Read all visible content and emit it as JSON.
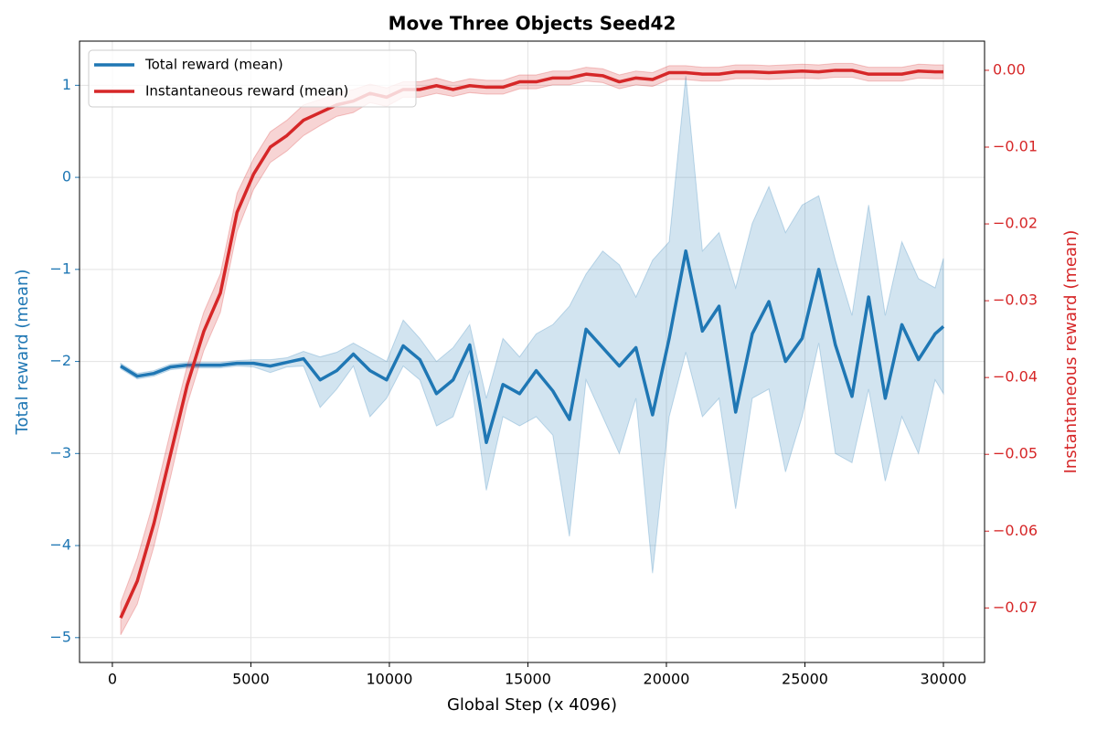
{
  "chart_data": {
    "type": "line",
    "title": "Move Three Objects Seed42",
    "xlabel": "Global Step (x 4096)",
    "ylabel": "Total reward (mean)",
    "y2label": "Instantaneous reward (mean)",
    "grid": true,
    "legend": "upper left",
    "xlim": [
      -1185,
      31485
    ],
    "xticks": [
      0,
      5000,
      10000,
      15000,
      20000,
      25000,
      30000
    ],
    "ylim": [
      -5.27,
      1.48
    ],
    "yticks": [
      {
        "value": -5,
        "label": "−5"
      },
      {
        "value": -4,
        "label": "−4"
      },
      {
        "value": -3,
        "label": "−3"
      },
      {
        "value": -2,
        "label": "−2"
      },
      {
        "value": -1,
        "label": "−1"
      },
      0,
      1
    ],
    "y2lim": [
      -0.0771,
      0.0038
    ],
    "y2ticks": [
      {
        "value": -0.07,
        "label": "−0.07"
      },
      {
        "value": -0.06,
        "label": "−0.06"
      },
      {
        "value": -0.05,
        "label": "−0.05"
      },
      {
        "value": -0.04,
        "label": "−0.04"
      },
      {
        "value": -0.03,
        "label": "−0.03"
      },
      {
        "value": -0.02,
        "label": "−0.02"
      },
      {
        "value": -0.01,
        "label": "−0.01"
      },
      {
        "value": 0,
        "label": "0.00"
      }
    ],
    "x": [
      300,
      900,
      1500,
      2100,
      2700,
      3300,
      3900,
      4500,
      5100,
      5700,
      6300,
      6900,
      7500,
      8100,
      8700,
      9300,
      9900,
      10500,
      11100,
      11700,
      12300,
      12900,
      13500,
      14100,
      14700,
      15300,
      15900,
      16500,
      17100,
      17700,
      18300,
      18900,
      19500,
      20100,
      20700,
      21300,
      21900,
      22500,
      23100,
      23700,
      24300,
      24900,
      25500,
      26100,
      26700,
      27300,
      27900,
      28500,
      29100,
      29700,
      30000
    ],
    "series": [
      {
        "name": "Total reward (mean)",
        "color": "#1f77b4",
        "values": [
          -2.05,
          -2.16,
          -2.13,
          -2.06,
          -2.04,
          -2.04,
          -2.04,
          -2.02,
          -2.02,
          -2.05,
          -2.01,
          -1.97,
          -2.2,
          -2.1,
          -1.92,
          -2.1,
          -2.2,
          -1.83,
          -1.98,
          -2.35,
          -2.2,
          -1.82,
          -2.88,
          -2.25,
          -2.35,
          -2.1,
          -2.32,
          -2.63,
          -1.65,
          -1.85,
          -2.05,
          -1.85,
          -2.58,
          -1.75,
          -0.8,
          -1.67,
          -1.4,
          -2.55,
          -1.7,
          -1.35,
          -2.0,
          -1.75,
          -1.0,
          -1.82,
          -2.38,
          -1.3,
          -2.4,
          -1.6,
          -1.98,
          -1.7,
          -1.62
        ],
        "lower": [
          -2.08,
          -2.19,
          -2.16,
          -2.09,
          -2.07,
          -2.07,
          -2.07,
          -2.05,
          -2.06,
          -2.12,
          -2.06,
          -2.05,
          -2.5,
          -2.3,
          -2.05,
          -2.6,
          -2.4,
          -2.05,
          -2.2,
          -2.7,
          -2.6,
          -2.1,
          -3.4,
          -2.6,
          -2.7,
          -2.6,
          -2.8,
          -3.9,
          -2.2,
          -2.6,
          -3.0,
          -2.4,
          -4.3,
          -2.6,
          -1.9,
          -2.6,
          -2.4,
          -3.6,
          -2.4,
          -2.3,
          -3.2,
          -2.6,
          -1.8,
          -3.0,
          -3.1,
          -2.3,
          -3.3,
          -2.6,
          -3.0,
          -2.2,
          -2.35
        ],
        "upper": [
          -2.02,
          -2.13,
          -2.1,
          -2.03,
          -2.01,
          -2.01,
          -2.01,
          -1.99,
          -1.98,
          -1.98,
          -1.96,
          -1.89,
          -1.95,
          -1.9,
          -1.8,
          -1.9,
          -2.0,
          -1.55,
          -1.75,
          -2.0,
          -1.85,
          -1.6,
          -2.4,
          -1.75,
          -1.95,
          -1.7,
          -1.6,
          -1.4,
          -1.05,
          -0.8,
          -0.95,
          -1.3,
          -0.9,
          -0.7,
          1.1,
          -0.8,
          -0.6,
          -1.2,
          -0.5,
          -0.1,
          -0.6,
          -0.3,
          -0.2,
          -0.9,
          -1.5,
          -0.3,
          -1.5,
          -0.7,
          -1.1,
          -1.2,
          -0.88
        ]
      },
      {
        "name": "Instantaneous reward (mean)",
        "color": "#d62728",
        "axis": "y2",
        "values": [
          -0.0713,
          -0.0665,
          -0.059,
          -0.05,
          -0.041,
          -0.034,
          -0.029,
          -0.0185,
          -0.0135,
          -0.01,
          -0.0085,
          -0.0065,
          -0.0055,
          -0.0045,
          -0.004,
          -0.003,
          -0.0035,
          -0.0025,
          -0.0025,
          -0.002,
          -0.0025,
          -0.002,
          -0.0022,
          -0.0022,
          -0.0015,
          -0.0015,
          -0.001,
          -0.001,
          -0.0005,
          -0.0007,
          -0.0015,
          -0.001,
          -0.0012,
          -0.0003,
          -0.0003,
          -0.0005,
          -0.0005,
          -0.0002,
          -0.0002,
          -0.0003,
          -0.0002,
          -0.0001,
          -0.0002,
          0.0,
          0.0,
          -0.0005,
          -0.0005,
          -0.0005,
          -0.0001,
          -0.0002,
          -0.0002
        ],
        "lower": [
          -0.0735,
          -0.0695,
          -0.062,
          -0.053,
          -0.0435,
          -0.0365,
          -0.0315,
          -0.021,
          -0.0155,
          -0.012,
          -0.0105,
          -0.0085,
          -0.0072,
          -0.006,
          -0.0055,
          -0.0042,
          -0.0047,
          -0.0035,
          -0.0035,
          -0.003,
          -0.0034,
          -0.0029,
          -0.0031,
          -0.0031,
          -0.0024,
          -0.0024,
          -0.0019,
          -0.0019,
          -0.0014,
          -0.0016,
          -0.0024,
          -0.0019,
          -0.0021,
          -0.0012,
          -0.0012,
          -0.0014,
          -0.0014,
          -0.0011,
          -0.0011,
          -0.0012,
          -0.0011,
          -0.001,
          -0.0011,
          -0.0009,
          -0.0009,
          -0.0014,
          -0.0014,
          -0.0014,
          -0.001,
          -0.0011,
          -0.0011
        ],
        "upper": [
          -0.0693,
          -0.0635,
          -0.056,
          -0.047,
          -0.0385,
          -0.0315,
          -0.0265,
          -0.016,
          -0.0115,
          -0.008,
          -0.0065,
          -0.0045,
          -0.0038,
          -0.003,
          -0.0025,
          -0.0018,
          -0.0023,
          -0.0015,
          -0.0015,
          -0.001,
          -0.0016,
          -0.0011,
          -0.0013,
          -0.0013,
          -0.0006,
          -0.0006,
          -0.0001,
          -0.0001,
          0.0004,
          0.0002,
          -0.0006,
          -0.0001,
          -0.0003,
          0.0006,
          0.0006,
          0.0004,
          0.0004,
          0.0007,
          0.0007,
          0.0006,
          0.0007,
          0.0008,
          0.0007,
          0.0009,
          0.0009,
          0.0004,
          0.0004,
          0.0004,
          0.0008,
          0.0007,
          0.0007
        ]
      }
    ]
  }
}
